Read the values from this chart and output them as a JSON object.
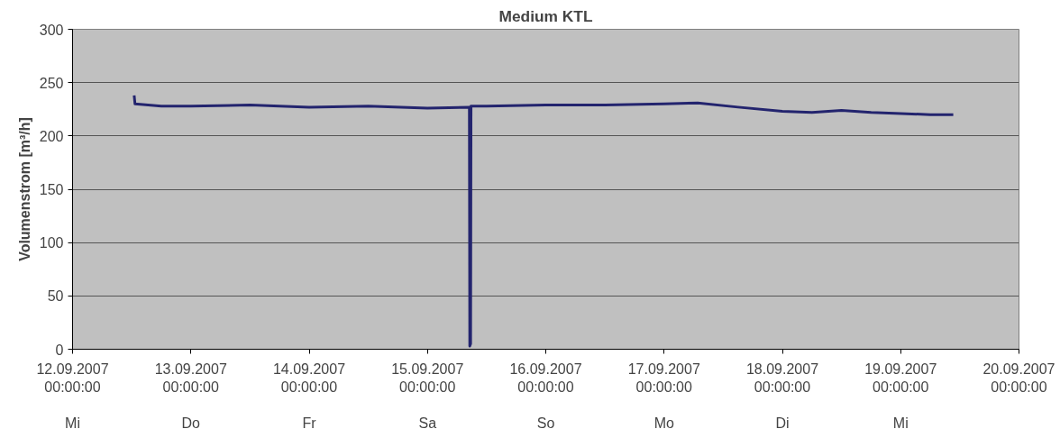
{
  "chart_data": {
    "type": "line",
    "title": "Medium KTL",
    "ylabel": "Volumenstrom [m³/h]",
    "x": [
      "2007-09-12T12:30",
      "2007-09-12T12:40",
      "2007-09-12T18:00",
      "2007-09-13T00:00",
      "2007-09-13T12:00",
      "2007-09-14T00:00",
      "2007-09-14T12:00",
      "2007-09-15T00:00",
      "2007-09-15T08:30",
      "2007-09-15T08:35",
      "2007-09-15T08:45",
      "2007-09-15T08:50",
      "2007-09-15T12:00",
      "2007-09-16T00:00",
      "2007-09-16T12:00",
      "2007-09-17T00:00",
      "2007-09-17T06:50",
      "2007-09-17T15:00",
      "2007-09-18T00:00",
      "2007-09-18T06:00",
      "2007-09-18T12:00",
      "2007-09-18T18:00",
      "2007-09-19T00:00",
      "2007-09-19T06:00",
      "2007-09-19T10:40"
    ],
    "series": [
      {
        "color": "#23246e",
        "values": [
          238,
          230,
          228,
          228,
          229,
          227,
          228,
          226,
          227,
          3,
          5,
          228,
          228,
          229,
          229,
          230,
          231,
          227,
          223,
          222,
          224,
          222,
          221,
          220,
          220
        ]
      }
    ],
    "xlim": [
      "2007-09-12T00:00",
      "2007-09-20T00:00"
    ],
    "xticks": [
      {
        "value": "2007-09-12T00:00",
        "label": "12.09.2007\n00:00:00"
      },
      {
        "value": "2007-09-13T00:00",
        "label": "13.09.2007\n00:00:00"
      },
      {
        "value": "2007-09-14T00:00",
        "label": "14.09.2007\n00:00:00"
      },
      {
        "value": "2007-09-15T00:00",
        "label": "15.09.2007\n00:00:00"
      },
      {
        "value": "2007-09-16T00:00",
        "label": "16.09.2007\n00:00:00"
      },
      {
        "value": "2007-09-17T00:00",
        "label": "17.09.2007\n00:00:00"
      },
      {
        "value": "2007-09-18T00:00",
        "label": "18.09.2007\n00:00:00"
      },
      {
        "value": "2007-09-19T00:00",
        "label": "19.09.2007\n00:00:00"
      },
      {
        "value": "2007-09-20T00:00",
        "label": "20.09.2007\n00:00:00"
      }
    ],
    "annotations": [
      "Mi",
      "Do",
      "Fr",
      "Sa",
      "So",
      "Mo",
      "Di",
      "Mi"
    ],
    "ylim": [
      0,
      300
    ],
    "yticks": [
      0,
      50,
      100,
      150,
      200,
      250,
      300
    ],
    "grid": "y"
  }
}
